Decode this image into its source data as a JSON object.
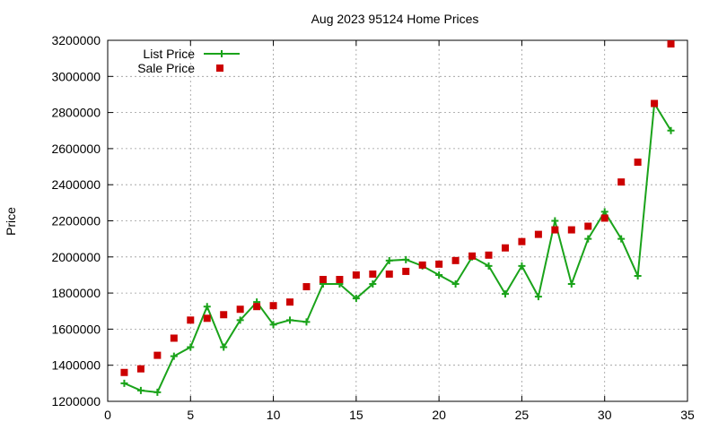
{
  "chart_data": {
    "type": "line",
    "title": "Aug 2023 95124 Home Prices",
    "xlabel": "",
    "ylabel": "Price",
    "xlim": [
      0,
      35
    ],
    "ylim": [
      1200000,
      3200000
    ],
    "xticks": [
      0,
      5,
      10,
      15,
      20,
      25,
      30,
      35
    ],
    "yticks": [
      1200000,
      1400000,
      1600000,
      1800000,
      2000000,
      2200000,
      2400000,
      2600000,
      2800000,
      3000000,
      3200000
    ],
    "grid": true,
    "legend_position": "top-left",
    "series": [
      {
        "name": "List Price",
        "style": "line-plus",
        "color": "#1aa31a",
        "x": [
          1,
          2,
          3,
          4,
          5,
          6,
          7,
          8,
          9,
          10,
          11,
          12,
          13,
          14,
          15,
          16,
          17,
          18,
          19,
          20,
          21,
          22,
          23,
          24,
          25,
          26,
          27,
          28,
          29,
          30,
          31,
          32,
          33,
          34
        ],
        "y": [
          1300000,
          1260000,
          1250000,
          1450000,
          1500000,
          1725000,
          1500000,
          1650000,
          1750000,
          1625000,
          1650000,
          1640000,
          1850000,
          1850000,
          1770000,
          1850000,
          1980000,
          1985000,
          1950000,
          1900000,
          1850000,
          2000000,
          1950000,
          1795000,
          1950000,
          1780000,
          2200000,
          1850000,
          2100000,
          2250000,
          2100000,
          1895000,
          2850000,
          2700000
        ]
      },
      {
        "name": "Sale Price",
        "style": "square-points",
        "color": "#cc0000",
        "x": [
          1,
          2,
          3,
          4,
          5,
          6,
          7,
          8,
          9,
          10,
          11,
          12,
          13,
          14,
          15,
          16,
          17,
          18,
          19,
          20,
          21,
          22,
          23,
          24,
          25,
          26,
          27,
          28,
          29,
          30,
          31,
          32,
          33,
          34
        ],
        "y": [
          1360000,
          1380000,
          1455000,
          1550000,
          1650000,
          1660000,
          1680000,
          1710000,
          1725000,
          1730000,
          1750000,
          1835000,
          1875000,
          1875000,
          1900000,
          1905000,
          1905000,
          1920000,
          1955000,
          1960000,
          1980000,
          2005000,
          2010000,
          2050000,
          2085000,
          2125000,
          2150000,
          2150000,
          2170000,
          2215000,
          2415000,
          2525000,
          2850000,
          3180000
        ]
      }
    ]
  }
}
